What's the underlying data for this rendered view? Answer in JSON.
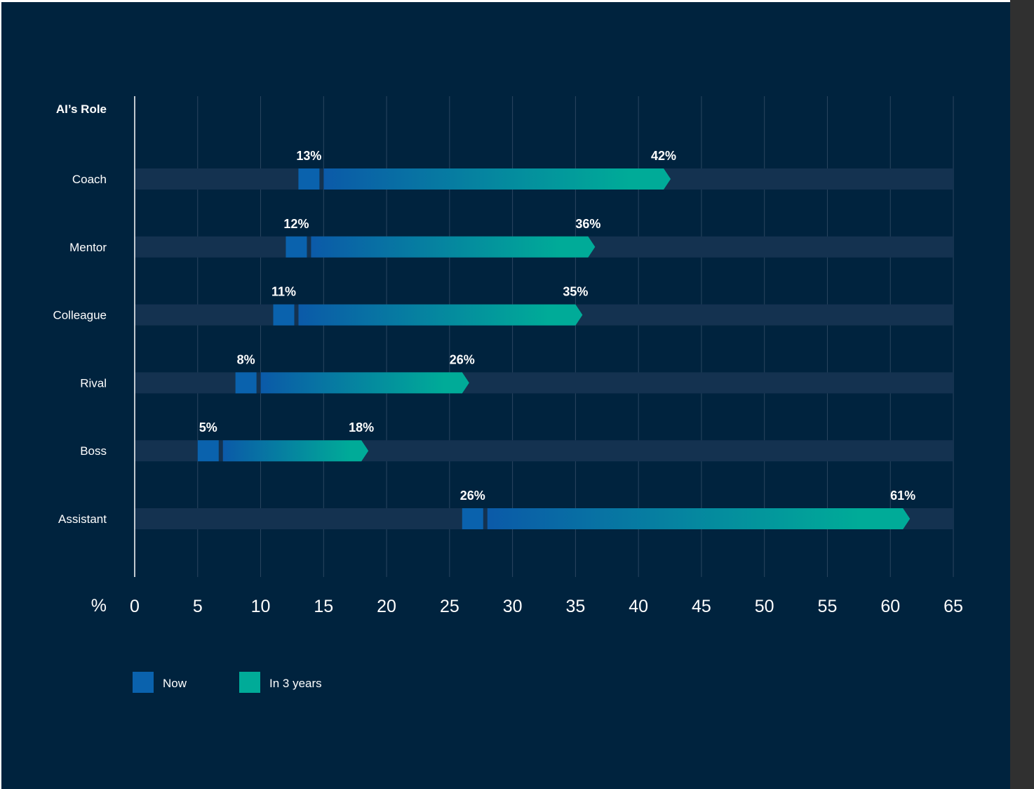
{
  "chart_data": {
    "type": "bar",
    "ylabel": "AI’s Role",
    "xlabel": "%",
    "xlim": [
      0,
      65
    ],
    "x_ticks": [
      0,
      5,
      10,
      15,
      20,
      25,
      30,
      35,
      40,
      45,
      50,
      55,
      60,
      65
    ],
    "grid": true,
    "legend_position": "bottom-left",
    "categories": [
      "Coach",
      "Mentor",
      "Colleague",
      "Rival",
      "Boss",
      "Assistant"
    ],
    "series": [
      {
        "name": "Now",
        "values": [
          13,
          12,
          11,
          8,
          5,
          26
        ],
        "labels": [
          "13%",
          "12%",
          "11%",
          "8%",
          "5%",
          "26%"
        ]
      },
      {
        "name": "In 3 years",
        "values": [
          42,
          36,
          35,
          26,
          18,
          61
        ],
        "labels": [
          "42%",
          "36%",
          "35%",
          "26%",
          "18%",
          "61%"
        ]
      }
    ],
    "colors": {
      "background": "#00233e",
      "track": "#143250",
      "now": "#0a62ad",
      "future_start": "#0b5aa8",
      "future_end": "#00ab98",
      "grid": "#2b4660",
      "axis": "#ffffff",
      "text": "#ffffff"
    }
  }
}
